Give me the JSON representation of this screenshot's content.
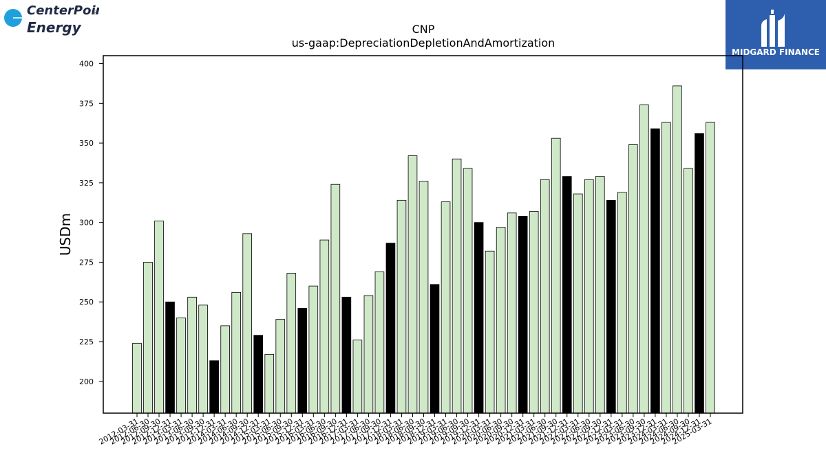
{
  "company_logo": {
    "line1": "CenterPoint",
    "line2": "Energy",
    "mark": "®",
    "icon": "circle-sun-icon"
  },
  "brand_logo": {
    "text": "MIDGARD FINANCE",
    "icon": "midgard-m-icon"
  },
  "colors": {
    "bar_normal": "#cfe8c8",
    "bar_highlight": "#000000",
    "bar_edge": "#000000",
    "brand_bg": "#2e5fae",
    "company_blue": "#1fa0dc"
  },
  "chart_data": {
    "type": "bar",
    "title": "CNP",
    "subtitle": "us-gaap:DepreciationDepletionAndAmortization",
    "xlabel": "",
    "ylabel": "USDm",
    "ylim": [
      180,
      405
    ],
    "yticks": [
      200,
      225,
      250,
      275,
      300,
      325,
      350,
      375,
      400
    ],
    "grid": false,
    "categories": [
      "2012-03-31",
      "2012-06-30",
      "2012-09-30",
      "2012-12-31",
      "2013-03-31",
      "2013-06-30",
      "2013-09-30",
      "2013-12-31",
      "2014-03-31",
      "2014-06-30",
      "2014-09-30",
      "2014-12-31",
      "2015-03-31",
      "2015-06-30",
      "2015-09-30",
      "2015-12-31",
      "2016-03-31",
      "2016-06-30",
      "2016-09-30",
      "2016-12-31",
      "2017-03-31",
      "2017-06-30",
      "2017-09-30",
      "2017-12-31",
      "2018-03-31",
      "2018-06-30",
      "2018-09-30",
      "2018-12-31",
      "2019-03-31",
      "2019-06-30",
      "2019-09-30",
      "2019-12-31",
      "2020-03-31",
      "2020-06-30",
      "2020-09-30",
      "2020-12-31",
      "2021-03-31",
      "2021-06-30",
      "2021-09-30",
      "2021-12-31",
      "2022-03-31",
      "2022-06-30",
      "2022-09-30",
      "2022-12-31",
      "2023-03-31",
      "2023-06-30",
      "2023-09-30",
      "2023-12-31",
      "2024-03-31",
      "2024-06-30",
      "2024-09-30",
      "2024-12-31",
      "2025-03-31"
    ],
    "values": [
      224,
      275,
      301,
      250,
      240,
      253,
      248,
      213,
      235,
      256,
      293,
      229,
      217,
      239,
      268,
      246,
      260,
      289,
      324,
      253,
      226,
      254,
      269,
      287,
      314,
      342,
      326,
      261,
      313,
      340,
      334,
      300,
      282,
      297,
      306,
      304,
      307,
      327,
      353,
      329,
      318,
      327,
      329,
      314,
      319,
      349,
      374,
      359,
      363,
      386,
      334,
      356,
      363
    ],
    "highlight_indices": [
      3,
      7,
      11,
      15,
      19,
      23,
      27,
      31,
      35,
      39,
      43,
      47,
      51
    ]
  }
}
